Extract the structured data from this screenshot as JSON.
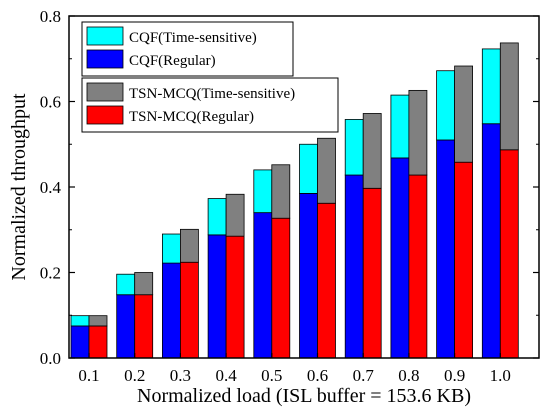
{
  "chart_data": {
    "type": "bar",
    "layout": "grouped-stacked",
    "xlabel": "Normalized load (ISL buffer = 153.6 KB)",
    "ylabel": "Normalized throughput",
    "categories": [
      "0.1",
      "0.2",
      "0.3",
      "0.4",
      "0.5",
      "0.6",
      "0.7",
      "0.8",
      "0.9",
      "1.0"
    ],
    "ylim": [
      0,
      0.8
    ],
    "yticks": [
      "0.0",
      "0.2",
      "0.4",
      "0.6",
      "0.8"
    ],
    "grid": false,
    "groups": [
      {
        "name": "CQF",
        "stack": [
          {
            "name": "CQF(Regular)",
            "color": "#0000ff",
            "values": [
              0.075,
              0.148,
              0.222,
              0.288,
              0.34,
              0.385,
              0.428,
              0.468,
              0.51,
              0.548
            ]
          },
          {
            "name": "CQF(Time-sensitive)",
            "color": "#00ffff",
            "values": [
              0.024,
              0.048,
              0.068,
              0.085,
              0.1,
              0.115,
              0.13,
              0.147,
              0.162,
              0.175
            ]
          }
        ]
      },
      {
        "name": "TSN-MCQ",
        "stack": [
          {
            "name": "TSN-MCQ(Regular)",
            "color": "#ff0000",
            "values": [
              0.075,
              0.148,
              0.224,
              0.285,
              0.327,
              0.362,
              0.397,
              0.428,
              0.458,
              0.487
            ]
          },
          {
            "name": "TSN-MCQ(Time-sensitive)",
            "color": "#808080",
            "values": [
              0.024,
              0.052,
              0.077,
              0.098,
              0.125,
              0.152,
              0.175,
              0.198,
              0.225,
              0.25
            ]
          }
        ]
      }
    ],
    "legend": {
      "placement": "top-left",
      "boxes": [
        [
          "CQF(Time-sensitive)",
          "CQF(Regular)"
        ],
        [
          "TSN-MCQ(Time-sensitive)",
          "TSN-MCQ(Regular)"
        ]
      ]
    }
  }
}
